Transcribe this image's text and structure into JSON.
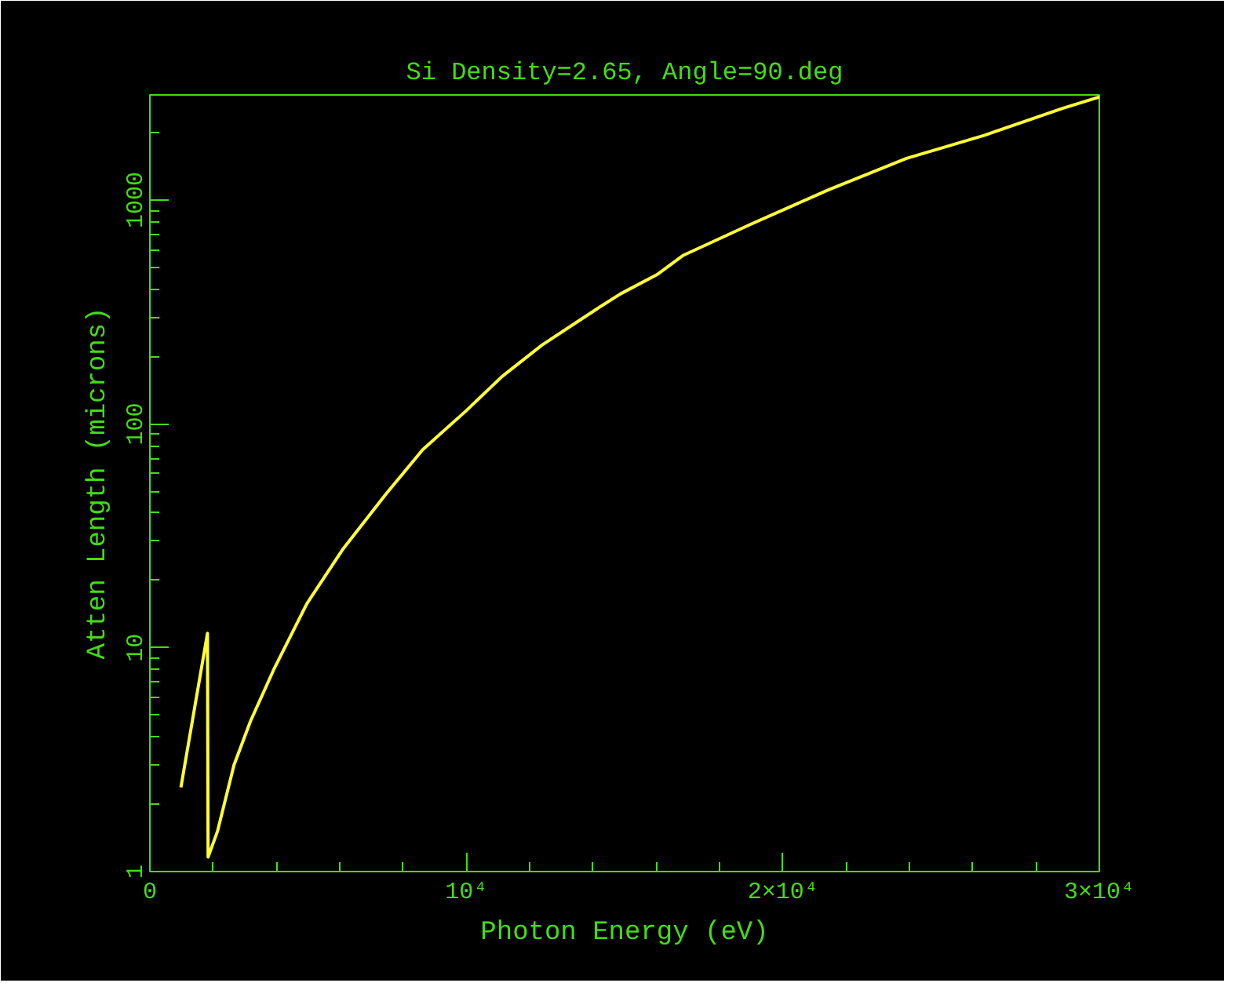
{
  "chart_data": {
    "type": "line",
    "title": "Si Density=2.65, Angle=90.deg",
    "xlabel": "Photon Energy (eV)",
    "ylabel": "Atten Length (microns)",
    "x": [
      981,
      1820,
      1840,
      2135,
      2658,
      3180,
      3910,
      4956,
      6110,
      7470,
      8620,
      9980,
      11130,
      12390,
      14060,
      14870,
      16050,
      16840,
      18980,
      21450,
      23910,
      26380,
      28840,
      30000
    ],
    "series": [
      {
        "color": "#ffff33",
        "values": [
          2.38,
          11.6,
          1.16,
          1.51,
          2.99,
          4.7,
          7.96,
          15.7,
          27.7,
          48.8,
          76.7,
          114,
          163,
          225,
          322,
          381,
          467,
          565,
          779,
          1112,
          1535,
          1950,
          2570,
          2890
        ]
      }
    ],
    "log": "y",
    "xlim": [
      0,
      30000
    ],
    "ylim": [
      1,
      2950
    ],
    "xticks": [
      0,
      {
        "value": 10000,
        "label": "10⁴"
      },
      {
        "value": 20000,
        "label": "2×10⁴"
      },
      {
        "value": 30000,
        "label": "3×10⁴"
      }
    ],
    "yticks": [
      1,
      10,
      100,
      1000
    ],
    "grid": false,
    "marker": "none",
    "line_style": "solid"
  }
}
